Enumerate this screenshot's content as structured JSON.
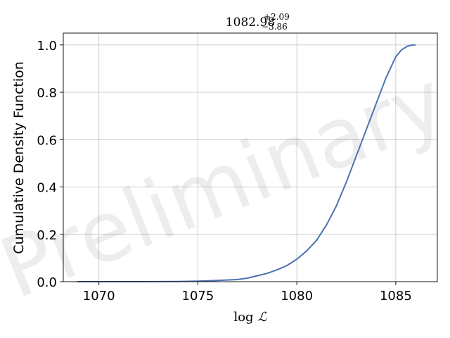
{
  "chart_data": {
    "type": "line",
    "title": {
      "base": "1082.98",
      "sup": "+2.09",
      "sub": "−3.86"
    },
    "xlabel": {
      "prefix": "log",
      "symbol": "ℒ"
    },
    "ylabel": "Cumulative Density Function",
    "watermark": "Preliminary",
    "xlim": [
      1068.2,
      1087.1
    ],
    "ylim": [
      0.0,
      1.05
    ],
    "xticks": [
      {
        "value": 1070,
        "label": "1070"
      },
      {
        "value": 1075,
        "label": "1075"
      },
      {
        "value": 1080,
        "label": "1080"
      },
      {
        "value": 1085,
        "label": "1085"
      }
    ],
    "yticks": [
      {
        "value": 0.0,
        "label": "0.0"
      },
      {
        "value": 0.2,
        "label": "0.2"
      },
      {
        "value": 0.4,
        "label": "0.4"
      },
      {
        "value": 0.6,
        "label": "0.6"
      },
      {
        "value": 0.8,
        "label": "0.8"
      },
      {
        "value": 1.0,
        "label": "1.0"
      }
    ],
    "grid": true,
    "line_color": "#4c72b0",
    "series": [
      {
        "x": [
          1068.9,
          1070,
          1072,
          1074,
          1075,
          1076,
          1077,
          1077.5,
          1078,
          1078.5,
          1079,
          1079.5,
          1080,
          1080.5,
          1081,
          1081.5,
          1082,
          1082.5,
          1083,
          1083.5,
          1084,
          1084.5,
          1085,
          1085.3,
          1085.6,
          1085.8,
          1086.0
        ],
        "y": [
          0.0,
          0.0,
          0.0,
          0.001,
          0.002,
          0.005,
          0.009,
          0.015,
          0.025,
          0.035,
          0.05,
          0.068,
          0.095,
          0.13,
          0.175,
          0.24,
          0.32,
          0.42,
          0.53,
          0.64,
          0.75,
          0.86,
          0.95,
          0.98,
          0.995,
          0.999,
          1.0
        ]
      }
    ]
  }
}
